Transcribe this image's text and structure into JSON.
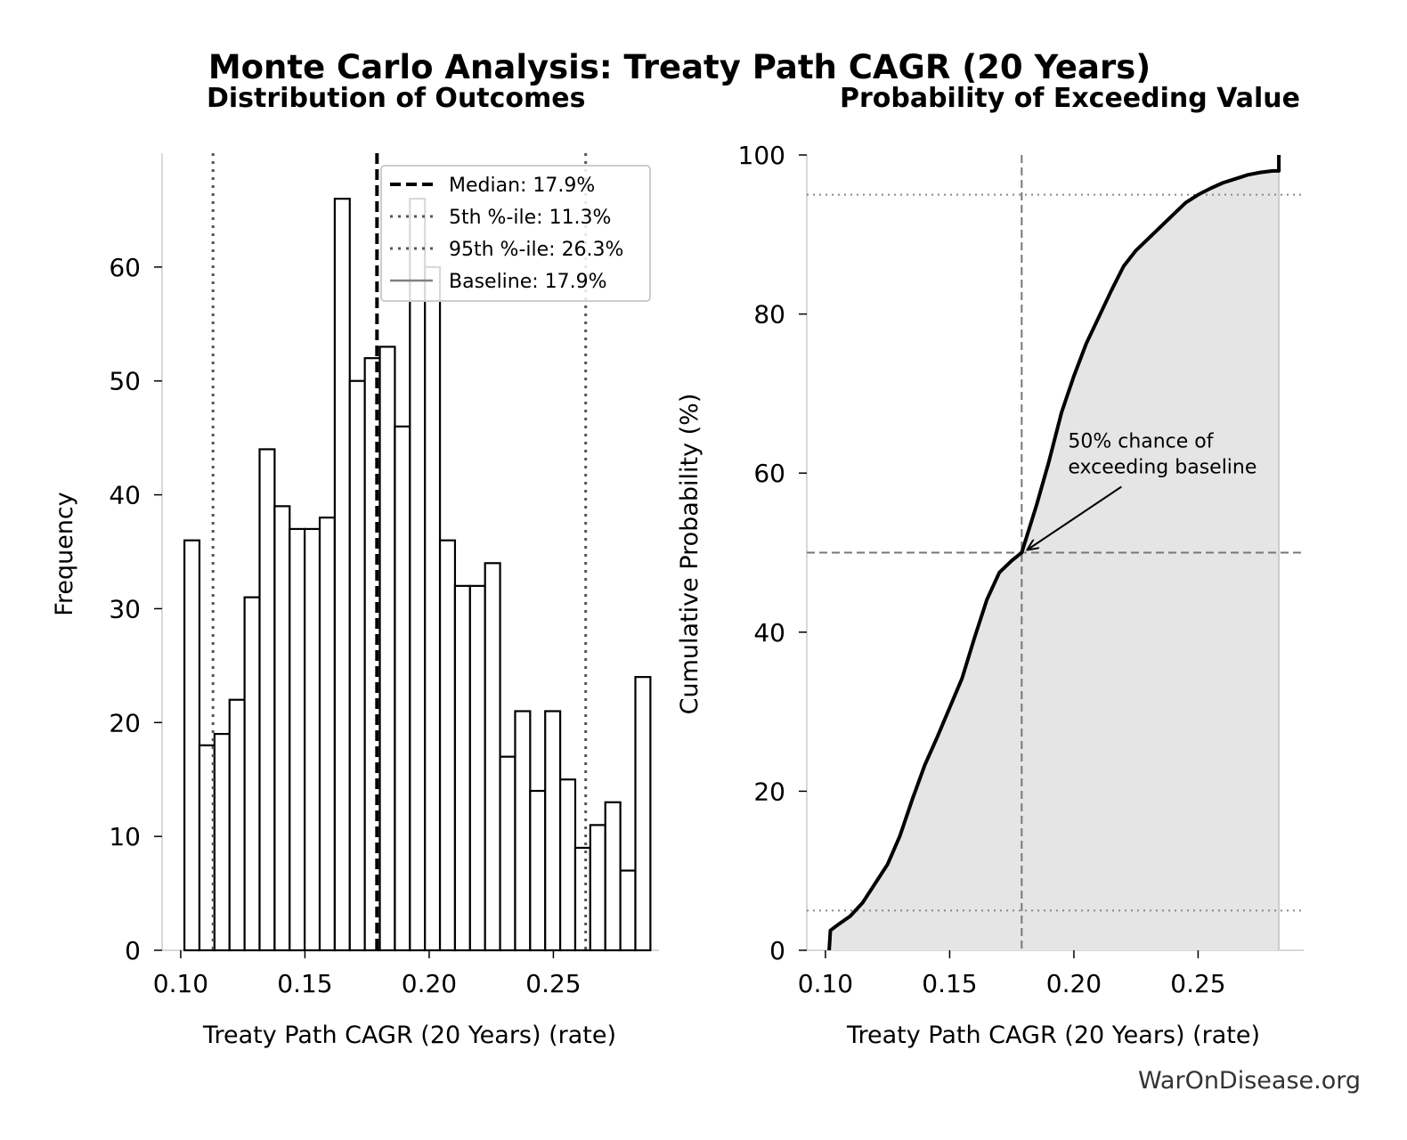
{
  "figure": {
    "title": "Monte Carlo Analysis: Treaty Path CAGR (20 Years)",
    "watermark": "WarOnDisease.org"
  },
  "chart_data": [
    {
      "type": "bar",
      "title": "Distribution of Outcomes",
      "xlabel": "Treaty Path CAGR (20 Years) (rate)",
      "ylabel": "Frequency",
      "xlim": [
        0.0925,
        0.2925
      ],
      "ylim": [
        0,
        70
      ],
      "xticks": [
        0.1,
        0.15,
        0.2,
        0.25
      ],
      "xtick_labels": [
        "0.10",
        "0.15",
        "0.20",
        "0.25"
      ],
      "yticks": [
        0,
        10,
        20,
        30,
        40,
        50,
        60
      ],
      "bin_start": 0.1015,
      "bin_width": 0.00605,
      "values": [
        36,
        18,
        19,
        22,
        31,
        44,
        39,
        37,
        37,
        38,
        66,
        50,
        52,
        53,
        46,
        66,
        60,
        36,
        32,
        32,
        34,
        17,
        21,
        14,
        21,
        15,
        9,
        11,
        13,
        7,
        24
      ],
      "reference_lines": [
        {
          "label": "Median: 17.9%",
          "x": 0.179,
          "style": "dashed",
          "color": "#000000"
        },
        {
          "label": "5th %-ile: 11.3%",
          "x": 0.113,
          "style": "dotted",
          "color": "#555555"
        },
        {
          "label": "95th %-ile: 26.3%",
          "x": 0.263,
          "style": "dotted",
          "color": "#555555"
        },
        {
          "label": "Baseline: 17.9%",
          "x": 0.179,
          "style": "solid",
          "color": "#808080"
        }
      ],
      "legend": "top-right",
      "grid": false
    },
    {
      "type": "area",
      "title": "Probability of Exceeding Value",
      "xlabel": "Treaty Path CAGR (20 Years) (rate)",
      "ylabel": "Cumulative Probability (%)",
      "xlim": [
        0.0925,
        0.2925
      ],
      "ylim": [
        0,
        100
      ],
      "xticks": [
        0.1,
        0.15,
        0.2,
        0.25
      ],
      "xtick_labels": [
        "0.10",
        "0.15",
        "0.20",
        "0.25"
      ],
      "yticks": [
        0,
        20,
        40,
        60,
        80,
        100
      ],
      "x": [
        0.1015,
        0.102,
        0.105,
        0.11,
        0.115,
        0.12,
        0.125,
        0.13,
        0.135,
        0.14,
        0.145,
        0.15,
        0.155,
        0.16,
        0.165,
        0.17,
        0.175,
        0.179,
        0.185,
        0.19,
        0.195,
        0.2,
        0.205,
        0.21,
        0.215,
        0.22,
        0.225,
        0.23,
        0.235,
        0.24,
        0.245,
        0.25,
        0.255,
        0.26,
        0.265,
        0.27,
        0.275,
        0.28,
        0.2825,
        0.2825
      ],
      "y": [
        0,
        2.5,
        3.2,
        4.3,
        6.0,
        8.4,
        10.8,
        14.4,
        19.0,
        23.3,
        26.8,
        30.5,
        34.2,
        39.3,
        44.1,
        47.5,
        49.0,
        50.0,
        56.0,
        61.5,
        67.6,
        72.2,
        76.3,
        79.6,
        82.9,
        86.0,
        88.0,
        89.5,
        91.0,
        92.5,
        94.0,
        95.0,
        95.8,
        96.5,
        97.0,
        97.5,
        97.8,
        98.0,
        98.0,
        100
      ],
      "line_color": "#000000",
      "fill_color": "#e5e5e5",
      "reference_lines": [
        {
          "axis": "x",
          "value": 0.179,
          "style": "dashed",
          "color": "#777777"
        },
        {
          "axis": "y",
          "value": 50,
          "style": "dashed",
          "color": "#777777"
        },
        {
          "axis": "y",
          "value": 95,
          "style": "dotted",
          "color": "#888888"
        },
        {
          "axis": "y",
          "value": 5,
          "style": "dotted",
          "color": "#888888"
        }
      ],
      "annotation": {
        "lines": [
          "50% chance of",
          "exceeding baseline"
        ],
        "target_x": 0.179,
        "target_y": 50
      },
      "grid": false
    }
  ]
}
